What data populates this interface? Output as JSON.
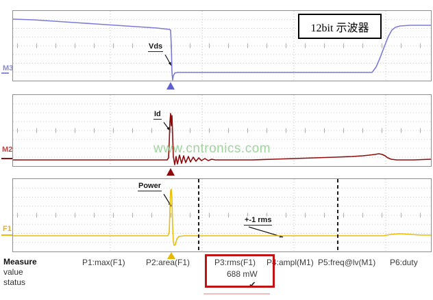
{
  "annotation_box": {
    "label": "12bit 示波器"
  },
  "watermark": {
    "text": "www.cntronics.com",
    "color": "#8fcd8f"
  },
  "scope": {
    "panels": [
      {
        "channel_label": "M3",
        "trace_label": "Vds",
        "trace_color": "#7a7ad8",
        "channel_color": "#8a8ad0",
        "points": [
          [
            0,
            12
          ],
          [
            30,
            13
          ],
          [
            60,
            15
          ],
          [
            90,
            17
          ],
          [
            120,
            19
          ],
          [
            150,
            21
          ],
          [
            180,
            23
          ],
          [
            210,
            25
          ],
          [
            228,
            27
          ],
          [
            230,
            28
          ],
          [
            231,
            50
          ],
          [
            232,
            90
          ],
          [
            233,
            101
          ],
          [
            234,
            95
          ],
          [
            236,
            91
          ],
          [
            240,
            90
          ],
          [
            280,
            90
          ],
          [
            320,
            90
          ],
          [
            360,
            90
          ],
          [
            400,
            90
          ],
          [
            450,
            90
          ],
          [
            500,
            90
          ],
          [
            524,
            90
          ],
          [
            530,
            82
          ],
          [
            536,
            68
          ],
          [
            542,
            52
          ],
          [
            548,
            37
          ],
          [
            553,
            28
          ],
          [
            558,
            24
          ],
          [
            565,
            22
          ],
          [
            580,
            21
          ],
          [
            610,
            21
          ]
        ],
        "arrows": [
          [
            222,
            64,
            231,
            80
          ]
        ],
        "cursors": []
      },
      {
        "channel_label": "M2",
        "trace_label": "Id",
        "trace_color": "#8e0b0b",
        "channel_color": "#b34a4a",
        "points": [
          [
            0,
            95
          ],
          [
            50,
            95
          ],
          [
            100,
            95
          ],
          [
            150,
            95
          ],
          [
            200,
            95
          ],
          [
            225,
            95
          ],
          [
            227,
            92
          ],
          [
            228,
            70
          ],
          [
            229,
            40
          ],
          [
            230,
            27
          ],
          [
            231,
            45
          ],
          [
            232,
            30
          ],
          [
            233,
            60
          ],
          [
            234,
            90
          ],
          [
            236,
            102
          ],
          [
            238,
            90
          ],
          [
            240,
            101
          ],
          [
            243,
            88
          ],
          [
            246,
            100
          ],
          [
            249,
            89
          ],
          [
            252,
            99
          ],
          [
            256,
            90
          ],
          [
            259,
            98
          ],
          [
            263,
            91
          ],
          [
            267,
            97
          ],
          [
            271,
            92
          ],
          [
            275,
            96
          ],
          [
            280,
            93
          ],
          [
            285,
            96
          ],
          [
            290,
            94
          ],
          [
            295,
            95
          ],
          [
            320,
            95
          ],
          [
            350,
            95
          ],
          [
            380,
            94
          ],
          [
            410,
            93
          ],
          [
            440,
            92
          ],
          [
            470,
            91
          ],
          [
            495,
            90
          ],
          [
            510,
            89
          ],
          [
            520,
            88
          ],
          [
            528,
            87
          ],
          [
            534,
            86
          ],
          [
            539,
            87
          ],
          [
            543,
            89
          ],
          [
            547,
            92
          ],
          [
            552,
            94
          ],
          [
            560,
            95
          ],
          [
            585,
            95
          ],
          [
            610,
            94
          ]
        ],
        "arrows": [
          [
            220,
            40,
            229,
            52
          ]
        ],
        "cursors": []
      },
      {
        "channel_label": "F1",
        "trace_label": "Power",
        "note": "+-1 rms",
        "trace_color": "#e9bd08",
        "channel_color": "#dfae2a",
        "points": [
          [
            0,
            83
          ],
          [
            50,
            83
          ],
          [
            100,
            83
          ],
          [
            150,
            83
          ],
          [
            200,
            83
          ],
          [
            226,
            83
          ],
          [
            228,
            78
          ],
          [
            229,
            45
          ],
          [
            230,
            17
          ],
          [
            231,
            15
          ],
          [
            232,
            30
          ],
          [
            233,
            70
          ],
          [
            234,
            90
          ],
          [
            235,
            97
          ],
          [
            237,
            96
          ],
          [
            239,
            88
          ],
          [
            242,
            84
          ],
          [
            250,
            83
          ],
          [
            300,
            83
          ],
          [
            350,
            83
          ],
          [
            400,
            83
          ],
          [
            450,
            83
          ],
          [
            500,
            83
          ],
          [
            540,
            83
          ],
          [
            552,
            81
          ],
          [
            565,
            80
          ],
          [
            580,
            81
          ],
          [
            595,
            82
          ],
          [
            610,
            82
          ]
        ],
        "arrows": [
          [
            220,
            22,
            231,
            40
          ],
          [
            344,
            70,
            394,
            85
          ]
        ],
        "cursors": [
          271,
          474
        ]
      }
    ]
  },
  "measure": {
    "row_labels": {
      "measure": "Measure",
      "value": "value",
      "status": "status"
    },
    "columns": [
      {
        "header": "P1:max(F1)",
        "value": "",
        "status": ""
      },
      {
        "header": "P2:area(F1)",
        "value": "",
        "status": ""
      },
      {
        "header": "P3:rms(F1)",
        "value": "688 mW",
        "status": "✔",
        "highlighted": true
      },
      {
        "header": "P4:ampl(M1)",
        "value": "",
        "status": ""
      },
      {
        "header": "P5:freq@lv(M1)",
        "value": "",
        "status": ""
      },
      {
        "header": "P6:duty",
        "value": "",
        "status": ""
      }
    ],
    "highlight_color": "#c01212"
  }
}
